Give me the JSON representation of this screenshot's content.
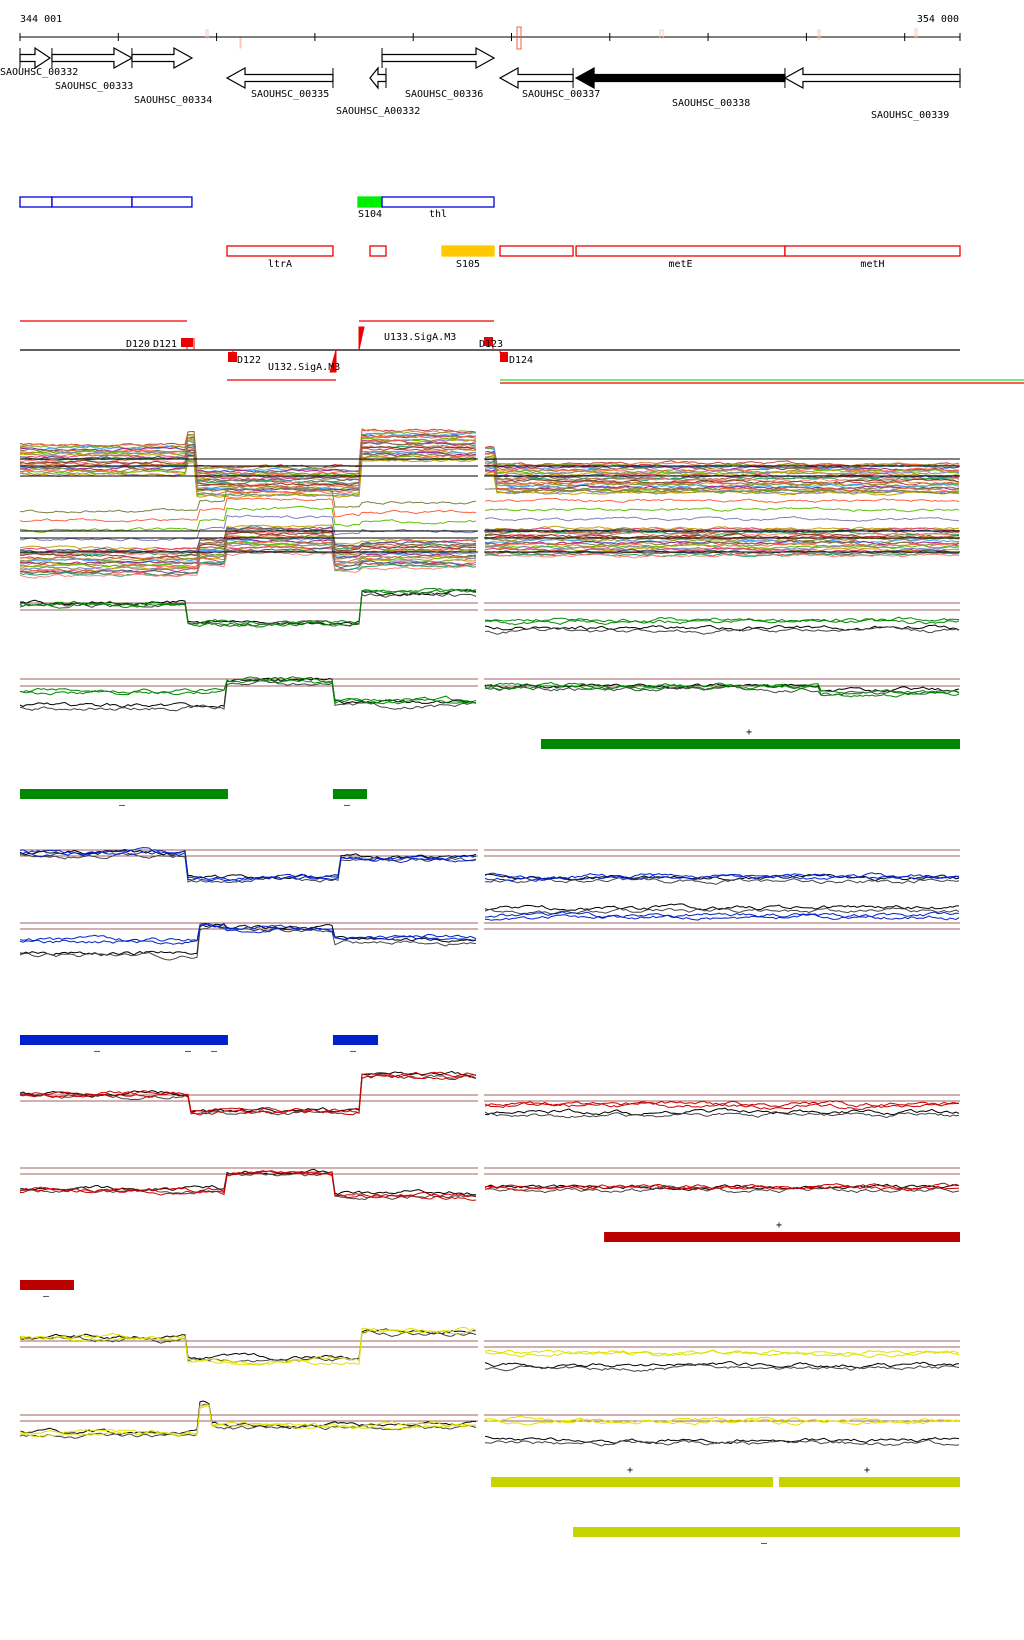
{
  "ruler": {
    "start_label": "344 001",
    "end_label": "354 000",
    "start_bp": 344001,
    "end_bp": 354000
  },
  "genes": [
    {
      "name": "SAOUHSC_00332",
      "start": 344001,
      "end": 344320,
      "strand": "+",
      "filled": false
    },
    {
      "name": "SAOUHSC_00333",
      "start": 344341,
      "end": 345192,
      "strand": "+",
      "filled": false
    },
    {
      "name": "SAOUHSC_00334",
      "start": 345192,
      "end": 345830,
      "strand": "+",
      "filled": false
    },
    {
      "name": "SAOUHSC_00335",
      "start": 346203,
      "end": 347330,
      "strand": "-",
      "filled": false
    },
    {
      "name": "SAOUHSC_A00332",
      "start": 347724,
      "end": 347894,
      "strand": "-",
      "filled": false
    },
    {
      "name": "SAOUHSC_00336",
      "start": 347852,
      "end": 349043,
      "strand": "+",
      "filled": false
    },
    {
      "name": "SAOUHSC_00337",
      "start": 349107,
      "end": 349884,
      "strand": "-",
      "filled": false
    },
    {
      "name": "SAOUHSC_00338",
      "start": 349916,
      "end": 352138,
      "strand": "-",
      "filled": true
    },
    {
      "name": "SAOUHSC_00339",
      "start": 352138,
      "end": 354000,
      "strand": "-",
      "filled": false
    }
  ],
  "forward_features": [
    {
      "label": "",
      "start": 344001,
      "end": 344341,
      "color": "#0000dd",
      "filled": false
    },
    {
      "label": "",
      "start": 344341,
      "end": 345192,
      "color": "#0000dd",
      "filled": false
    },
    {
      "label": "",
      "start": 345192,
      "end": 345830,
      "color": "#0000dd",
      "filled": false
    },
    {
      "label": "S104",
      "start": 347596,
      "end": 347852,
      "color": "#00ee00",
      "filled": true
    },
    {
      "label": "thl",
      "start": 347852,
      "end": 349043,
      "color": "#0000dd",
      "filled": false
    }
  ],
  "reverse_features": [
    {
      "label": "ltrA",
      "start": 346203,
      "end": 347330,
      "color": "#ee0000",
      "filled": false
    },
    {
      "label": "",
      "start": 347724,
      "end": 347894,
      "color": "#ee0000",
      "filled": false
    },
    {
      "label": "S105",
      "start": 348490,
      "end": 349043,
      "color": "#ffc800",
      "filled": true
    },
    {
      "label": "",
      "start": 349107,
      "end": 349884,
      "color": "#ee0000",
      "filled": false
    },
    {
      "label": "metE",
      "start": 349916,
      "end": 352138,
      "color": "#ee0000",
      "filled": false
    },
    {
      "label": "metH",
      "start": 352138,
      "end": 354000,
      "color": "#ee0000",
      "filled": false
    }
  ],
  "elements": [
    {
      "label": "D120",
      "side": "above"
    },
    {
      "label": "D121",
      "side": "above"
    },
    {
      "label": "D122",
      "side": "below"
    },
    {
      "label": "U132.SigA.M3",
      "side": "below"
    },
    {
      "label": "U133.SigA.M3",
      "side": "above"
    },
    {
      "label": "D123",
      "side": "above"
    },
    {
      "label": "D124",
      "side": "below"
    }
  ],
  "strand_segments": [
    {
      "color": "#008800",
      "strand": "+",
      "regions": [
        [
          349543,
          354000
        ]
      ],
      "signs": [
        "+"
      ]
    },
    {
      "color": "#008800",
      "strand": "-",
      "regions": [
        [
          344001,
          346213
        ],
        [
          347330,
          347692
        ]
      ],
      "signs": [
        "–",
        "–"
      ]
    },
    {
      "color": "#0022cc",
      "strand": "-",
      "regions": [
        [
          344001,
          346213
        ],
        [
          347330,
          347809
        ]
      ],
      "signs": [
        "–",
        "–",
        "–",
        "–"
      ]
    },
    {
      "color": "#bb0000",
      "strand": "+",
      "regions": [
        [
          350214,
          354000
        ]
      ],
      "signs": [
        "+"
      ]
    },
    {
      "color": "#bb0000",
      "strand": "-",
      "regions": [
        [
          344001,
          344575
        ]
      ],
      "signs": [
        "–"
      ]
    },
    {
      "color": "#c8d400",
      "strand": "+",
      "regions": [
        [
          349011,
          352011
        ],
        [
          352074,
          354000
        ]
      ],
      "signs": [
        "+",
        "+"
      ]
    },
    {
      "color": "#c8d400",
      "strand": "-",
      "regions": [
        [
          349884,
          354000
        ]
      ],
      "signs": [
        "–"
      ]
    }
  ],
  "colors": {
    "green": "#008800",
    "blue": "#0022cc",
    "red": "#cc0000",
    "yellow": "#e0e000",
    "reference": "#a06060"
  }
}
